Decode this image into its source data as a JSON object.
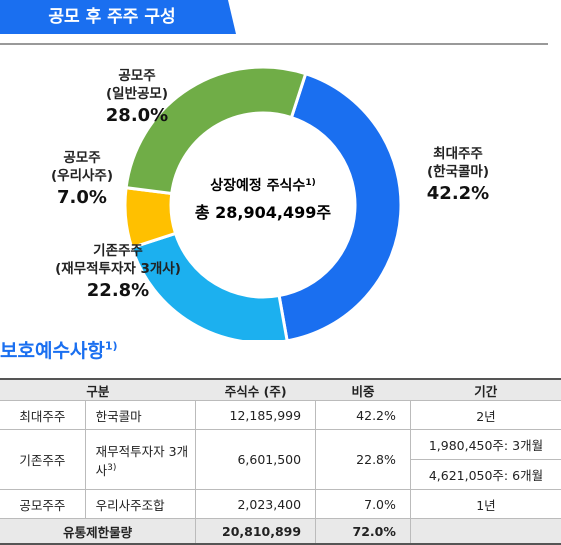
{
  "header": {
    "title": "공모 후 주주 구성"
  },
  "chart_data": {
    "type": "pie",
    "donut": true,
    "center_label": {
      "text": "상장예정 주식수",
      "note": "1)",
      "total": "총 28,904,499주"
    },
    "categories": [
      [
        "최대주주",
        "(한국콜마)"
      ],
      [
        "기존주주",
        "(재무적투자자 3개사)"
      ],
      [
        "공모주",
        "(우리사주)"
      ],
      [
        "공모주",
        "(일반공모)"
      ]
    ],
    "values": [
      42.2,
      22.8,
      7.0,
      28.0
    ],
    "value_labels": [
      "42.2%",
      "22.8%",
      "7.0%",
      "28.0%"
    ],
    "colors": [
      "#1a6ff0",
      "#1cb0ef",
      "#ffc000",
      "#70ad47"
    ]
  },
  "section": {
    "title": "보호예수사항",
    "note": "1)"
  },
  "table": {
    "header": [
      "구분",
      "주식수 (주)",
      "비중",
      "기간"
    ],
    "rows": [
      {
        "group": "최대주주",
        "holder": "한국콜마",
        "shares": "12,185,999",
        "ratio": "42.2%",
        "period": [
          "2년"
        ]
      },
      {
        "group": "기존주주",
        "holder": "재무적투자자 3개사",
        "holder_note": "3)",
        "shares": "6,601,500",
        "ratio": "22.8%",
        "period": [
          "1,980,450주: 3개월",
          "4,621,050주: 6개월"
        ]
      },
      {
        "group": "공모주주",
        "holder": "우리사주조합",
        "shares": "2,023,400",
        "ratio": "7.0%",
        "period": [
          "1년"
        ]
      }
    ],
    "total": {
      "label": "유통제한물량",
      "shares": "20,810,899",
      "ratio": "72.0%"
    }
  }
}
